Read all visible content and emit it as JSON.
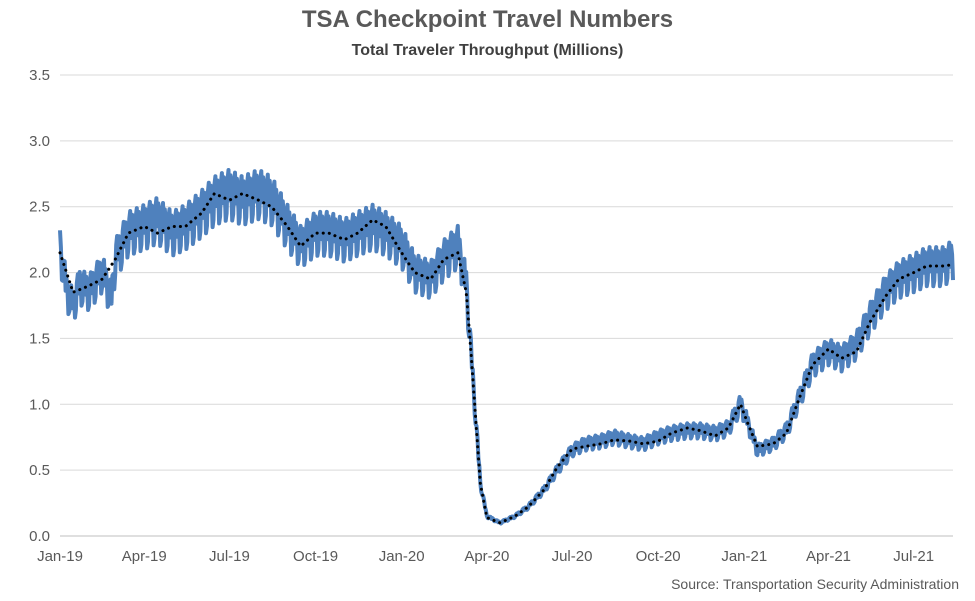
{
  "chart_data": {
    "type": "line",
    "title": "TSA Checkpoint Travel Numbers",
    "subtitle": "Total Traveler Throughput (Millions)",
    "source": "Source: Transportation Security Administration",
    "xlabel": "",
    "ylabel": "",
    "ylim": [
      0,
      3.5
    ],
    "yticks": [
      "0.0",
      "0.5",
      "1.0",
      "1.5",
      "2.0",
      "2.5",
      "3.0",
      "3.5"
    ],
    "xlim": [
      "2019-01-01",
      "2021-08-12"
    ],
    "xticks": [
      {
        "date": "2019-01-01",
        "label": "Jan-19"
      },
      {
        "date": "2019-04-01",
        "label": "Apr-19"
      },
      {
        "date": "2019-07-01",
        "label": "Jul-19"
      },
      {
        "date": "2019-10-01",
        "label": "Oct-19"
      },
      {
        "date": "2020-01-01",
        "label": "Jan-20"
      },
      {
        "date": "2020-04-01",
        "label": "Apr-20"
      },
      {
        "date": "2020-07-01",
        "label": "Jul-20"
      },
      {
        "date": "2020-10-01",
        "label": "Oct-20"
      },
      {
        "date": "2021-01-01",
        "label": "Jan-21"
      },
      {
        "date": "2021-04-01",
        "label": "Apr-21"
      },
      {
        "date": "2021-07-01",
        "label": "Jul-21"
      }
    ],
    "grid": true,
    "legend": "none",
    "series": [
      {
        "style": "solid",
        "color": "#4f81bd",
        "points": [
          [
            "2019-01-01",
            2.2
          ],
          [
            "2019-01-08",
            1.85
          ],
          [
            "2019-01-15",
            1.75
          ],
          [
            "2019-01-22",
            1.9
          ],
          [
            "2019-02-01",
            1.85
          ],
          [
            "2019-02-15",
            2.0
          ],
          [
            "2019-02-25",
            1.8
          ],
          [
            "2019-03-01",
            2.1
          ],
          [
            "2019-03-15",
            2.3
          ],
          [
            "2019-04-01",
            2.35
          ],
          [
            "2019-04-15",
            2.4
          ],
          [
            "2019-05-01",
            2.3
          ],
          [
            "2019-05-15",
            2.35
          ],
          [
            "2019-06-01",
            2.45
          ],
          [
            "2019-06-15",
            2.55
          ],
          [
            "2019-07-01",
            2.6
          ],
          [
            "2019-07-15",
            2.55
          ],
          [
            "2019-08-01",
            2.6
          ],
          [
            "2019-08-15",
            2.55
          ],
          [
            "2019-09-01",
            2.35
          ],
          [
            "2019-09-15",
            2.2
          ],
          [
            "2019-10-01",
            2.3
          ],
          [
            "2019-10-15",
            2.3
          ],
          [
            "2019-11-01",
            2.25
          ],
          [
            "2019-11-15",
            2.3
          ],
          [
            "2019-12-01",
            2.35
          ],
          [
            "2019-12-15",
            2.3
          ],
          [
            "2020-01-01",
            2.2
          ],
          [
            "2020-01-15",
            2.0
          ],
          [
            "2020-02-01",
            1.95
          ],
          [
            "2020-02-15",
            2.1
          ],
          [
            "2020-03-01",
            2.2
          ],
          [
            "2020-03-10",
            1.9
          ],
          [
            "2020-03-15",
            1.4
          ],
          [
            "2020-03-20",
            0.9
          ],
          [
            "2020-03-25",
            0.4
          ],
          [
            "2020-04-01",
            0.15
          ],
          [
            "2020-04-15",
            0.1
          ],
          [
            "2020-05-01",
            0.15
          ],
          [
            "2020-05-15",
            0.22
          ],
          [
            "2020-06-01",
            0.35
          ],
          [
            "2020-06-15",
            0.5
          ],
          [
            "2020-07-01",
            0.65
          ],
          [
            "2020-07-15",
            0.7
          ],
          [
            "2020-08-01",
            0.72
          ],
          [
            "2020-08-15",
            0.75
          ],
          [
            "2020-09-01",
            0.72
          ],
          [
            "2020-09-15",
            0.7
          ],
          [
            "2020-10-01",
            0.75
          ],
          [
            "2020-10-15",
            0.78
          ],
          [
            "2020-11-01",
            0.8
          ],
          [
            "2020-11-15",
            0.8
          ],
          [
            "2020-12-01",
            0.78
          ],
          [
            "2020-12-15",
            0.82
          ],
          [
            "2020-12-28",
            1.0
          ],
          [
            "2021-01-05",
            0.85
          ],
          [
            "2021-01-15",
            0.65
          ],
          [
            "2021-02-01",
            0.7
          ],
          [
            "2021-02-15",
            0.8
          ],
          [
            "2021-03-01",
            1.05
          ],
          [
            "2021-03-15",
            1.3
          ],
          [
            "2021-04-01",
            1.4
          ],
          [
            "2021-04-15",
            1.35
          ],
          [
            "2021-05-01",
            1.45
          ],
          [
            "2021-05-15",
            1.65
          ],
          [
            "2021-06-01",
            1.85
          ],
          [
            "2021-06-15",
            1.95
          ],
          [
            "2021-07-01",
            2.0
          ],
          [
            "2021-07-15",
            2.05
          ],
          [
            "2021-08-01",
            2.05
          ],
          [
            "2021-08-12",
            2.1
          ]
        ],
        "daily_swing": 0.22
      },
      {
        "style": "dotted",
        "color": "#000000",
        "points": [
          [
            "2019-01-01",
            2.15
          ],
          [
            "2019-01-15",
            1.85
          ],
          [
            "2019-02-01",
            1.9
          ],
          [
            "2019-02-15",
            1.95
          ],
          [
            "2019-03-01",
            2.1
          ],
          [
            "2019-03-15",
            2.3
          ],
          [
            "2019-04-01",
            2.35
          ],
          [
            "2019-04-15",
            2.3
          ],
          [
            "2019-05-01",
            2.35
          ],
          [
            "2019-05-15",
            2.35
          ],
          [
            "2019-06-01",
            2.45
          ],
          [
            "2019-06-15",
            2.6
          ],
          [
            "2019-07-01",
            2.55
          ],
          [
            "2019-07-15",
            2.6
          ],
          [
            "2019-08-01",
            2.55
          ],
          [
            "2019-08-15",
            2.5
          ],
          [
            "2019-09-01",
            2.35
          ],
          [
            "2019-09-15",
            2.2
          ],
          [
            "2019-10-01",
            2.3
          ],
          [
            "2019-10-15",
            2.3
          ],
          [
            "2019-11-01",
            2.25
          ],
          [
            "2019-11-15",
            2.3
          ],
          [
            "2019-12-01",
            2.4
          ],
          [
            "2019-12-15",
            2.35
          ],
          [
            "2020-01-01",
            2.15
          ],
          [
            "2020-01-15",
            2.0
          ],
          [
            "2020-02-01",
            1.95
          ],
          [
            "2020-02-15",
            2.1
          ],
          [
            "2020-03-01",
            2.15
          ],
          [
            "2020-03-10",
            1.85
          ],
          [
            "2020-03-15",
            1.4
          ],
          [
            "2020-03-20",
            0.9
          ],
          [
            "2020-03-25",
            0.4
          ],
          [
            "2020-04-01",
            0.14
          ],
          [
            "2020-04-15",
            0.1
          ],
          [
            "2020-05-01",
            0.15
          ],
          [
            "2020-05-15",
            0.22
          ],
          [
            "2020-06-01",
            0.35
          ],
          [
            "2020-06-15",
            0.52
          ],
          [
            "2020-07-01",
            0.66
          ],
          [
            "2020-07-15",
            0.68
          ],
          [
            "2020-08-01",
            0.7
          ],
          [
            "2020-08-15",
            0.73
          ],
          [
            "2020-09-01",
            0.72
          ],
          [
            "2020-09-15",
            0.7
          ],
          [
            "2020-10-01",
            0.72
          ],
          [
            "2020-10-15",
            0.78
          ],
          [
            "2020-11-01",
            0.82
          ],
          [
            "2020-11-15",
            0.8
          ],
          [
            "2020-12-01",
            0.76
          ],
          [
            "2020-12-15",
            0.82
          ],
          [
            "2020-12-28",
            1.0
          ],
          [
            "2021-01-05",
            0.85
          ],
          [
            "2021-01-15",
            0.68
          ],
          [
            "2021-02-01",
            0.7
          ],
          [
            "2021-02-15",
            0.78
          ],
          [
            "2021-03-01",
            1.05
          ],
          [
            "2021-03-15",
            1.3
          ],
          [
            "2021-04-01",
            1.42
          ],
          [
            "2021-04-15",
            1.35
          ],
          [
            "2021-05-01",
            1.4
          ],
          [
            "2021-05-15",
            1.62
          ],
          [
            "2021-06-01",
            1.82
          ],
          [
            "2021-06-15",
            1.95
          ],
          [
            "2021-07-01",
            2.0
          ],
          [
            "2021-07-15",
            2.05
          ],
          [
            "2021-08-01",
            2.05
          ],
          [
            "2021-08-12",
            2.06
          ]
        ]
      }
    ]
  }
}
